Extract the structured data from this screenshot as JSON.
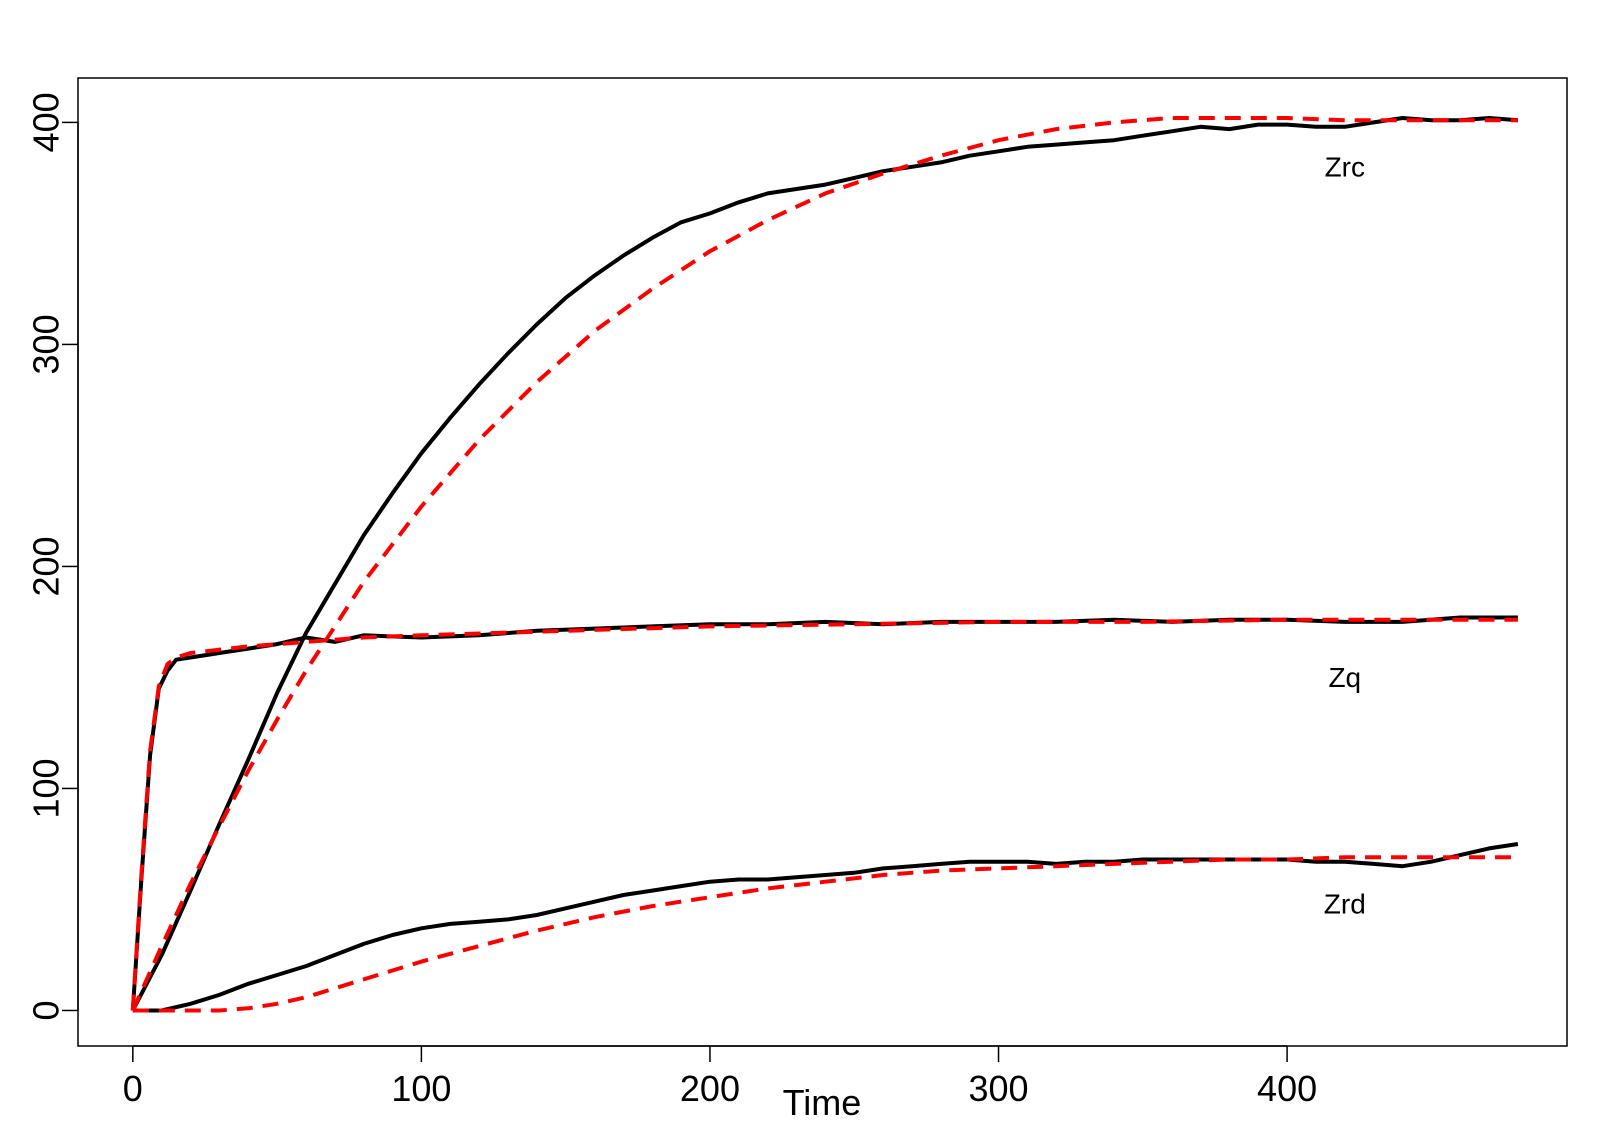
{
  "chart_data": {
    "type": "line",
    "title": "",
    "xlabel": "Time",
    "ylabel": "",
    "xlim": [
      -19,
      497
    ],
    "ylim": [
      -16,
      420
    ],
    "xticks": [
      0,
      100,
      200,
      300,
      400
    ],
    "yticks": [
      0,
      100,
      200,
      300,
      400
    ],
    "grid": false,
    "legend": "none",
    "colors": {
      "simulated": "#000000",
      "model": "#ff0000"
    },
    "line_styles": {
      "simulated": "solid",
      "model": "dashed"
    },
    "series_labels": [
      {
        "text": "Zrc",
        "x": 420,
        "y": 380
      },
      {
        "text": "Zq",
        "x": 420,
        "y": 150
      },
      {
        "text": "Zrd",
        "x": 420,
        "y": 48
      }
    ],
    "series": [
      {
        "label": "Zrc",
        "style": "simulated",
        "x": [
          0,
          10,
          20,
          30,
          40,
          50,
          60,
          70,
          80,
          90,
          100,
          110,
          120,
          130,
          140,
          150,
          160,
          170,
          180,
          190,
          200,
          210,
          220,
          230,
          240,
          250,
          260,
          270,
          280,
          290,
          300,
          310,
          320,
          330,
          340,
          350,
          360,
          370,
          380,
          390,
          400,
          410,
          420,
          430,
          440,
          450,
          460,
          470,
          480
        ],
        "y": [
          0,
          25,
          54,
          84,
          113,
          143,
          170,
          192,
          214,
          233,
          251,
          267,
          282,
          296,
          309,
          321,
          331,
          340,
          348,
          355,
          359,
          364,
          368,
          370,
          372,
          375,
          378,
          380,
          382,
          385,
          387,
          389,
          390,
          391,
          392,
          394,
          396,
          398,
          397,
          399,
          399,
          398,
          398,
          400,
          402,
          401,
          401,
          402,
          401
        ]
      },
      {
        "label": "Zrc",
        "style": "model",
        "x": [
          0,
          10,
          20,
          30,
          40,
          50,
          60,
          80,
          100,
          120,
          140,
          160,
          180,
          200,
          220,
          240,
          260,
          280,
          300,
          320,
          340,
          360,
          380,
          400,
          420,
          440,
          460,
          480
        ],
        "y": [
          0,
          29,
          57,
          83,
          108,
          131,
          153,
          193,
          227,
          257,
          283,
          306,
          325,
          342,
          356,
          368,
          377,
          385,
          392,
          397,
          400,
          402,
          402,
          402,
          401,
          401,
          401,
          401
        ]
      },
      {
        "label": "Zq",
        "style": "simulated",
        "x": [
          0,
          3,
          6,
          9,
          12,
          15,
          20,
          30,
          40,
          50,
          60,
          70,
          80,
          100,
          120,
          140,
          160,
          180,
          200,
          220,
          240,
          260,
          280,
          300,
          320,
          340,
          360,
          380,
          400,
          420,
          440,
          460,
          480
        ],
        "y": [
          0,
          60,
          115,
          145,
          153,
          158,
          159,
          161,
          163,
          165,
          168,
          166,
          169,
          168,
          169,
          171,
          172,
          173,
          174,
          174,
          175,
          174,
          175,
          175,
          175,
          176,
          175,
          176,
          176,
          175,
          175,
          177,
          177
        ]
      },
      {
        "label": "Zq",
        "style": "model",
        "x": [
          0,
          3,
          6,
          9,
          12,
          15,
          20,
          40,
          60,
          80,
          100,
          150,
          200,
          250,
          300,
          350,
          400,
          450,
          480
        ],
        "y": [
          0,
          62,
          117,
          146,
          156,
          159,
          161,
          164,
          166,
          168,
          169,
          171,
          173,
          174,
          175,
          175,
          176,
          176,
          176
        ]
      },
      {
        "label": "Zrd",
        "style": "simulated",
        "x": [
          0,
          10,
          20,
          30,
          40,
          50,
          60,
          70,
          80,
          90,
          100,
          110,
          120,
          130,
          140,
          150,
          160,
          170,
          180,
          190,
          200,
          210,
          220,
          230,
          240,
          250,
          260,
          270,
          280,
          290,
          300,
          310,
          320,
          330,
          340,
          350,
          360,
          370,
          380,
          390,
          400,
          410,
          420,
          430,
          440,
          450,
          460,
          470,
          480
        ],
        "y": [
          0,
          0,
          3,
          7,
          12,
          16,
          20,
          25,
          30,
          34,
          37,
          39,
          40,
          41,
          43,
          46,
          49,
          52,
          54,
          56,
          58,
          59,
          59,
          60,
          61,
          62,
          64,
          65,
          66,
          67,
          67,
          67,
          66,
          67,
          67,
          68,
          68,
          68,
          68,
          68,
          68,
          67,
          67,
          66,
          65,
          67,
          70,
          73,
          75
        ]
      },
      {
        "label": "Zrd",
        "style": "model",
        "x": [
          0,
          10,
          20,
          30,
          40,
          50,
          60,
          70,
          80,
          90,
          100,
          120,
          140,
          160,
          180,
          200,
          220,
          240,
          260,
          280,
          300,
          320,
          340,
          360,
          380,
          400,
          420,
          440,
          460,
          480
        ],
        "y": [
          0,
          0,
          0,
          0,
          1,
          3,
          6,
          10,
          14,
          18,
          22,
          29,
          36,
          42,
          47,
          51,
          55,
          58,
          61,
          63,
          64,
          65,
          66,
          67,
          68,
          68,
          69,
          69,
          69,
          69
        ]
      }
    ]
  }
}
